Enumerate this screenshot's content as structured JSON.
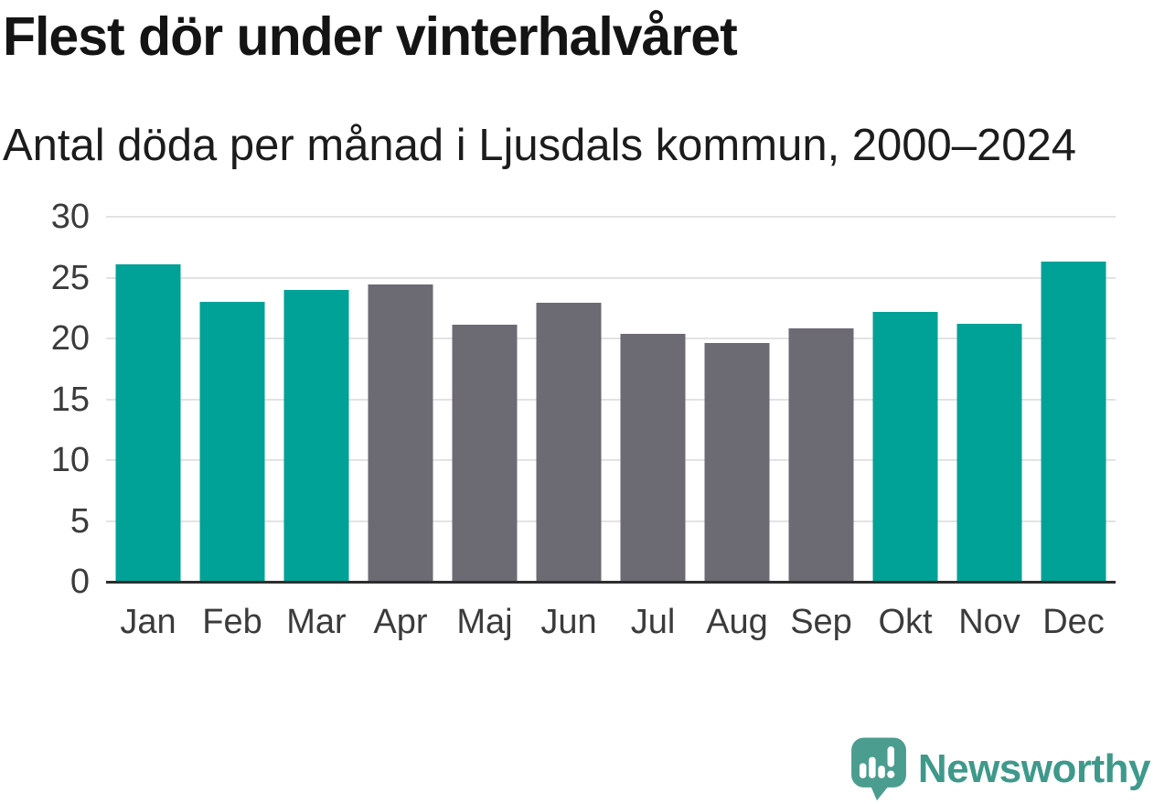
{
  "chart_data": {
    "type": "bar",
    "title": "Flest dör under vinterhalvåret",
    "subtitle": "Antal döda per månad i Ljusdals kommun, 2000–2024",
    "categories": [
      "Jan",
      "Feb",
      "Mar",
      "Apr",
      "Maj",
      "Jun",
      "Jul",
      "Aug",
      "Sep",
      "Okt",
      "Nov",
      "Dec"
    ],
    "values": [
      26.1,
      23.0,
      24.0,
      24.4,
      21.1,
      22.9,
      20.4,
      19.6,
      20.8,
      22.2,
      21.2,
      26.3
    ],
    "bar_color_roles": [
      "winter",
      "winter",
      "winter",
      "summer",
      "summer",
      "summer",
      "summer",
      "summer",
      "summer",
      "winter",
      "winter",
      "winter"
    ],
    "colors": {
      "winter": "#00a196",
      "summer": "#6c6a73"
    },
    "xlabel": "",
    "ylabel": "",
    "ylim": [
      0,
      30
    ],
    "yticks": [
      0,
      5,
      10,
      15,
      20,
      25,
      30
    ],
    "grid": "horizontal",
    "legend": "none",
    "gridline_color": "#e3e3e3",
    "axis_line_color": "#2d2d2d",
    "tick_label_color": "#3b3b3b",
    "title_color": "#141414",
    "subtitle_color": "#1c1c1c"
  },
  "footer": {
    "brand": "Newsworthy",
    "brand_color": "#3e998b",
    "icon": "newsworthy-speech-bubble-bar-chart-icon",
    "icon_color": "#4a9d8f"
  }
}
